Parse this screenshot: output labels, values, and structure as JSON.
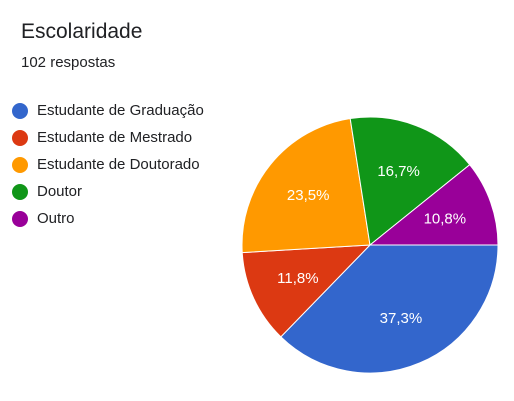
{
  "header": {
    "title": "Escolaridade",
    "subtitle": "102 respostas"
  },
  "chart_data": {
    "type": "pie",
    "title": "Escolaridade",
    "subtitle": "102 respostas",
    "legend_position": "left",
    "slices": [
      {
        "name": "Estudante de Graduação",
        "value": 37.3,
        "label": "37,3%",
        "color": "#3366cc"
      },
      {
        "name": "Estudante de Mestrado",
        "value": 11.8,
        "label": "11,8%",
        "color": "#dc3912"
      },
      {
        "name": "Estudante de Doutorado",
        "value": 23.5,
        "label": "23,5%",
        "color": "#ff9900"
      },
      {
        "name": "Doutor",
        "value": 16.7,
        "label": "16,7%",
        "color": "#109618"
      },
      {
        "name": "Outro",
        "value": 10.8,
        "label": "10,8%",
        "color": "#990099"
      }
    ]
  }
}
